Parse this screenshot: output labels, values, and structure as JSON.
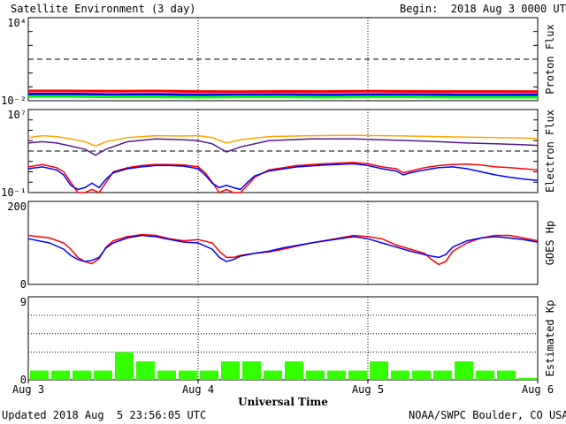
{
  "header": {
    "title": "Satellite Environment (3 day)",
    "begin": "Begin:  2018 Aug 3 0000 UTC"
  },
  "footer": {
    "updated": "Updated 2018 Aug  5 23:56:05 UTC",
    "credit": "NOAA/SWPC Boulder, CO USA"
  },
  "colors": {
    "red": "#ff0000",
    "blue": "#0000ff",
    "green": "#00ff00",
    "orange": "#ffa500",
    "purple": "#551a8b",
    "kp_bar": "#33ff00"
  },
  "chart_data": [
    {
      "type": "line",
      "panel": "proton",
      "ylabel": "Proton Flux",
      "yscale": "log",
      "ylim": [
        0.01,
        10000
      ],
      "yticks": [
        "10⁴",
        "10⁻²"
      ],
      "xlim": [
        0,
        72
      ],
      "threshold": 10,
      "series": [
        {
          "color": "red",
          "t": [
            0,
            6,
            12,
            18,
            24,
            30,
            36,
            42,
            48,
            54,
            60,
            66,
            72
          ],
          "y": [
            0.05,
            0.05,
            0.048,
            0.05,
            0.046,
            0.045,
            0.047,
            0.046,
            0.048,
            0.047,
            0.046,
            0.046,
            0.045
          ]
        },
        {
          "color": "blue",
          "t": [
            0,
            6,
            12,
            18,
            24,
            30,
            36,
            42,
            48,
            54,
            60,
            66,
            72
          ],
          "y": [
            0.03,
            0.03,
            0.028,
            0.029,
            0.027,
            0.027,
            0.028,
            0.027,
            0.028,
            0.028,
            0.027,
            0.027,
            0.027
          ]
        },
        {
          "color": "green",
          "t": [
            0,
            6,
            12,
            18,
            24,
            30,
            36,
            42,
            48,
            54,
            60,
            66,
            72
          ],
          "y": [
            0.02,
            0.02,
            0.019,
            0.019,
            0.018,
            0.019,
            0.019,
            0.018,
            0.019,
            0.019,
            0.018,
            0.018,
            0.018
          ]
        }
      ]
    },
    {
      "type": "line",
      "panel": "electron",
      "ylabel": "Electron Flux",
      "yscale": "log",
      "ylim": [
        0.1,
        10000000
      ],
      "yticks": [
        "10⁷",
        "10⁻¹"
      ],
      "xlim": [
        0,
        72
      ],
      "threshold": 1000,
      "series": [
        {
          "color": "orange",
          "t": [
            0,
            2,
            4,
            6,
            8,
            9.5,
            11,
            14,
            18,
            22,
            24,
            26,
            28,
            30,
            34,
            40,
            46,
            50,
            54,
            58,
            62,
            66,
            70,
            72
          ],
          "y": [
            20000,
            30000,
            25000,
            15000,
            8000,
            3000,
            8000,
            20000,
            30000,
            28000,
            30000,
            20000,
            6000,
            12000,
            25000,
            30000,
            32000,
            30000,
            28000,
            25000,
            22000,
            20000,
            18000,
            16000
          ]
        },
        {
          "color": "purple",
          "t": [
            0,
            2,
            4,
            6,
            8,
            9.5,
            11,
            14,
            18,
            22,
            24,
            26,
            28,
            30,
            34,
            40,
            46,
            50,
            54,
            58,
            62,
            66,
            70,
            72
          ],
          "y": [
            6000,
            8000,
            6000,
            3000,
            1500,
            400,
            1500,
            8000,
            15000,
            12000,
            10000,
            5000,
            800,
            2500,
            10000,
            15000,
            15000,
            12000,
            10000,
            8000,
            6000,
            5000,
            4000,
            3500
          ]
        },
        {
          "color": "red",
          "t": [
            0,
            2,
            4,
            5,
            6,
            7,
            8,
            9,
            10,
            11,
            12,
            14,
            16,
            18,
            20,
            22,
            24,
            25,
            26,
            27,
            28,
            29,
            30,
            31,
            32,
            34,
            38,
            42,
            46,
            48,
            50,
            52,
            53,
            54,
            56,
            58,
            60,
            62,
            64,
            66,
            68,
            70,
            72
          ],
          "y": [
            30,
            50,
            25,
            10,
            1,
            0.1,
            0.1,
            0.2,
            0.1,
            1,
            10,
            25,
            40,
            50,
            50,
            45,
            30,
            8,
            1,
            0.1,
            0.2,
            0.1,
            0.1,
            0.5,
            3,
            15,
            40,
            60,
            80,
            60,
            30,
            20,
            8,
            12,
            25,
            40,
            50,
            55,
            45,
            30,
            25,
            20,
            15
          ]
        },
        {
          "color": "blue",
          "t": [
            0,
            2,
            4,
            5,
            6,
            7,
            8,
            9,
            10,
            11,
            12,
            14,
            16,
            18,
            20,
            22,
            24,
            25,
            26,
            27,
            28,
            29,
            30,
            31,
            32,
            34,
            38,
            42,
            46,
            48,
            50,
            52,
            53,
            54,
            56,
            58,
            60,
            62,
            64,
            66,
            68,
            70,
            72
          ],
          "y": [
            20,
            30,
            15,
            5,
            0.5,
            0.2,
            0.3,
            0.8,
            0.3,
            2,
            8,
            20,
            30,
            40,
            40,
            35,
            20,
            5,
            0.8,
            0.3,
            0.5,
            0.3,
            0.2,
            1,
            4,
            12,
            30,
            45,
            60,
            40,
            20,
            12,
            5,
            8,
            15,
            25,
            30,
            20,
            10,
            5,
            3,
            2,
            1.5
          ]
        }
      ]
    },
    {
      "type": "line",
      "panel": "hp",
      "ylabel": "GOES Hp",
      "ylim": [
        0,
        200
      ],
      "yticks": [
        "200",
        "0"
      ],
      "xlim": [
        0,
        72
      ],
      "series": [
        {
          "color": "red",
          "t": [
            0,
            3,
            5,
            6,
            7,
            8,
            9,
            10,
            11,
            12,
            14,
            16,
            18,
            20,
            22,
            24,
            26,
            27,
            28,
            29,
            30,
            32,
            34,
            36,
            40,
            44,
            46,
            48,
            50,
            52,
            54,
            56,
            57,
            58,
            59,
            60,
            62,
            64,
            66,
            68,
            70,
            72
          ],
          "y": [
            118,
            112,
            100,
            85,
            65,
            55,
            50,
            62,
            90,
            105,
            115,
            120,
            118,
            110,
            105,
            108,
            100,
            80,
            65,
            65,
            70,
            75,
            78,
            85,
            100,
            112,
            118,
            115,
            110,
            95,
            85,
            75,
            60,
            48,
            55,
            80,
            100,
            112,
            118,
            118,
            112,
            105
          ]
        },
        {
          "color": "blue",
          "t": [
            0,
            3,
            5,
            6,
            7,
            8,
            9,
            10,
            11,
            12,
            14,
            16,
            18,
            20,
            22,
            24,
            26,
            27,
            28,
            29,
            30,
            32,
            34,
            36,
            40,
            44,
            46,
            48,
            50,
            52,
            54,
            56,
            57,
            58,
            59,
            60,
            62,
            64,
            66,
            68,
            70,
            72
          ],
          "y": [
            110,
            100,
            85,
            70,
            60,
            55,
            58,
            65,
            88,
            100,
            112,
            118,
            115,
            108,
            102,
            100,
            85,
            65,
            55,
            60,
            68,
            75,
            80,
            88,
            100,
            110,
            115,
            110,
            100,
            90,
            80,
            72,
            68,
            65,
            72,
            90,
            105,
            112,
            115,
            112,
            108,
            102
          ]
        }
      ]
    },
    {
      "type": "bar",
      "panel": "kp",
      "ylabel": "Estimated Kp",
      "ylim": [
        0,
        9
      ],
      "yticks": [
        "9",
        "0"
      ],
      "xlim": [
        0,
        72
      ],
      "xticks": [
        "Aug 3",
        "Aug 4",
        "Aug 5",
        "Aug 6"
      ],
      "xlabel": "Universal Time",
      "values": [
        1,
        1,
        1,
        1,
        3,
        2,
        1,
        1,
        1,
        2,
        2,
        1,
        2,
        1,
        1,
        1,
        2,
        1,
        1,
        1,
        2,
        1,
        1,
        0.2
      ]
    }
  ]
}
